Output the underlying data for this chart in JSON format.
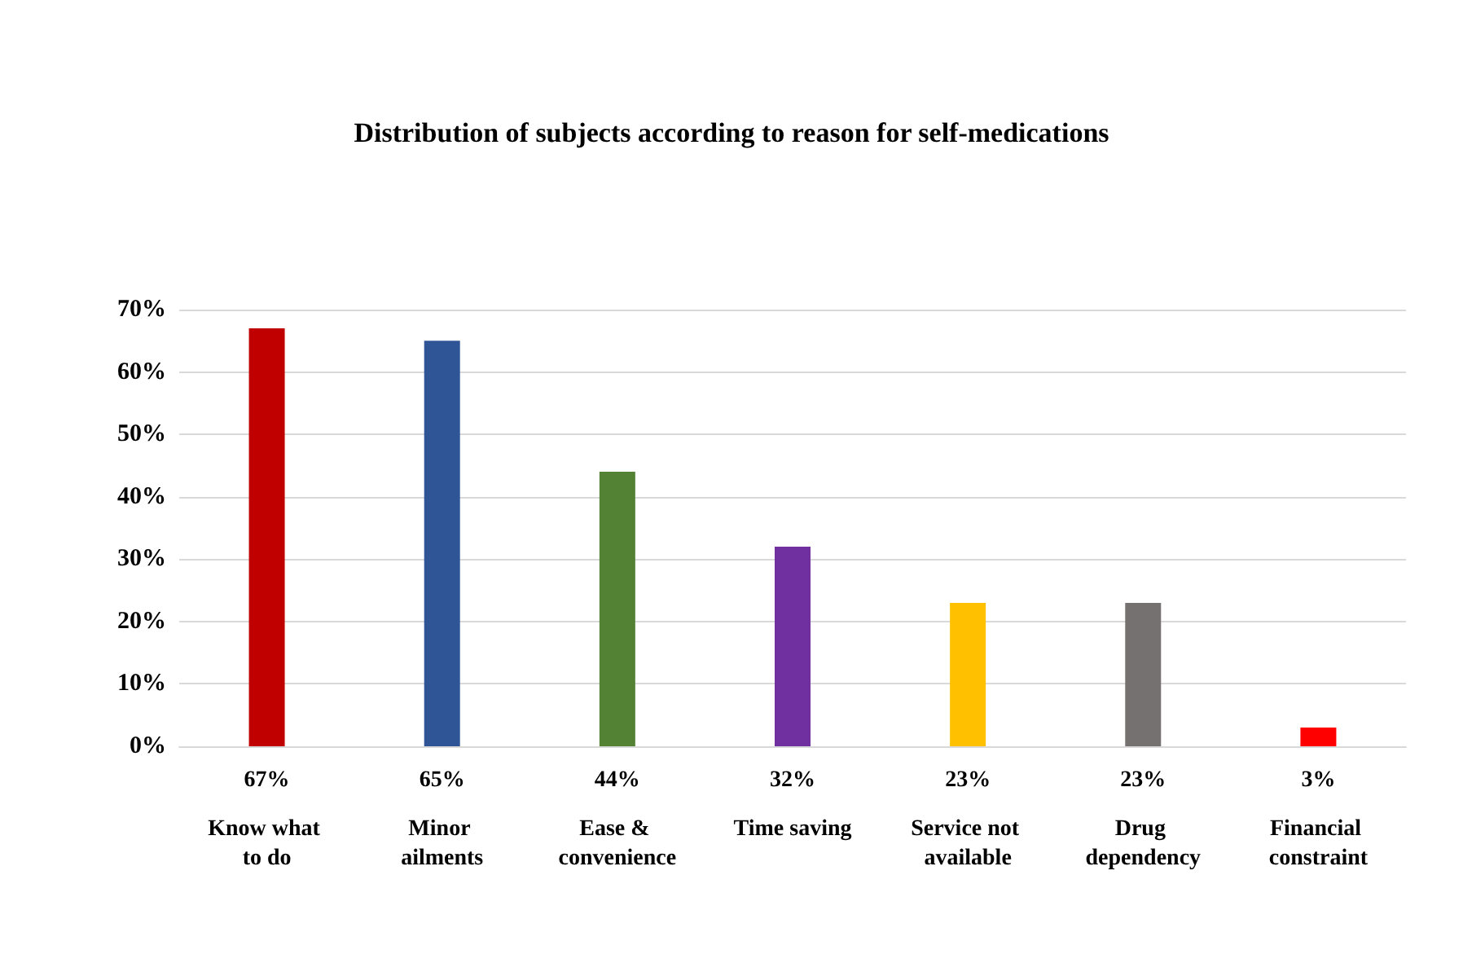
{
  "chart_data": {
    "type": "bar",
    "title": "Distribution of subjects according to reason for self-medications",
    "categories": [
      "Know what to do",
      "Minor ailments",
      "Ease & convenience",
      "Time saving",
      "Service not available",
      "Drug dependency",
      "Financial constraint"
    ],
    "values": [
      67,
      65,
      44,
      32,
      23,
      23,
      3
    ],
    "value_labels": [
      "67%",
      "65%",
      "44%",
      "32%",
      "23%",
      "23%",
      "3%"
    ],
    "colors": [
      "#c00000",
      "#2f5597",
      "#548235",
      "#7030a0",
      "#ffc000",
      "#767171",
      "#ff0000"
    ],
    "ylim": [
      0,
      70
    ],
    "yticks": [
      {
        "value": 0,
        "label": "0%"
      },
      {
        "value": 10,
        "label": "10%"
      },
      {
        "value": 20,
        "label": "20%"
      },
      {
        "value": 30,
        "label": "30%"
      },
      {
        "value": 40,
        "label": "40%"
      },
      {
        "value": 50,
        "label": "50%"
      },
      {
        "value": 60,
        "label": "60%"
      },
      {
        "value": 70,
        "label": "70%"
      }
    ],
    "grid": "y"
  }
}
